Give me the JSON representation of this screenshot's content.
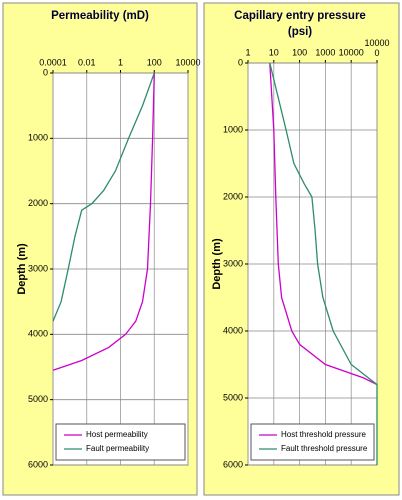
{
  "chart_data": [
    {
      "type": "line",
      "title": "Permeability (mD)",
      "ylabel": "Depth (m)",
      "xscale": "log",
      "xlim": [
        0.0001,
        10000
      ],
      "xticks": [
        0.0001,
        0.01,
        1,
        100,
        10000
      ],
      "ylim": [
        0,
        6000
      ],
      "yticks": [
        0,
        1000,
        2000,
        3000,
        4000,
        5000,
        6000
      ],
      "y_inverted": true,
      "grid": true,
      "legend": "lower left",
      "series": [
        {
          "name": "Host permeability",
          "color": "#cc00cc",
          "x": [
            100,
            80,
            60,
            40,
            20,
            8,
            2,
            0.2,
            0.005,
            0.0001
          ],
          "y": [
            0,
            1000,
            2000,
            3000,
            3500,
            3800,
            4000,
            4200,
            4400,
            4550
          ]
        },
        {
          "name": "Fault permeability",
          "color": "#2e8b6e",
          "x": [
            100,
            20,
            3,
            0.5,
            0.1,
            0.02,
            0.005,
            0.002,
            0.0008,
            0.0003,
            0.0001
          ],
          "y": [
            0,
            500,
            1000,
            1500,
            1800,
            2000,
            2100,
            2500,
            3000,
            3500,
            3800
          ]
        }
      ]
    },
    {
      "type": "line",
      "title": "Capillary entry pressure (psi)",
      "ylabel": "Depth (m)",
      "xscale": "log",
      "xlim": [
        1,
        100000
      ],
      "xticks": [
        1,
        10,
        100,
        1000,
        10000,
        100000
      ],
      "ylim": [
        0,
        6000
      ],
      "yticks": [
        0,
        1000,
        2000,
        3000,
        4000,
        5000,
        6000
      ],
      "y_inverted": true,
      "grid": true,
      "legend": "lower left",
      "series": [
        {
          "name": "Host threshold pressure",
          "color": "#cc00cc",
          "x": [
            7,
            10,
            12,
            15,
            20,
            50,
            100,
            1000,
            30000,
            100000
          ],
          "y": [
            0,
            1000,
            2000,
            3000,
            3500,
            4000,
            4200,
            4500,
            4700,
            4800
          ]
        },
        {
          "name": "Fault threshold pressure",
          "color": "#2e8b6e",
          "x": [
            7,
            30,
            60,
            150,
            300,
            400,
            500,
            800,
            2000,
            10000,
            100000,
            100000
          ],
          "y": [
            0,
            1000,
            1500,
            1800,
            2000,
            2500,
            3000,
            3500,
            4000,
            4500,
            4800,
            6000
          ]
        }
      ]
    }
  ]
}
